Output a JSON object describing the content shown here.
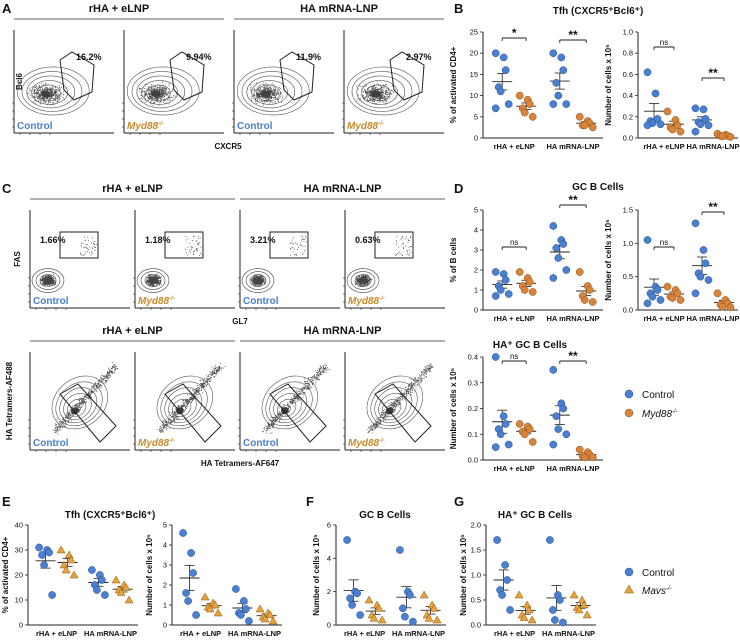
{
  "colors": {
    "control": "#4a7fd1",
    "myd88": "#d9843b",
    "mavs": "#e8a13c"
  },
  "panel_letters": {
    "a": "A",
    "b": "B",
    "c": "C",
    "d": "D",
    "e": "E",
    "f": "F",
    "g": "G"
  },
  "panel_a": {
    "headers": [
      "rHA + eLNP",
      "HA mRNA-LNP"
    ],
    "ylabel": "Bcl6",
    "xlabel": "CXCR5",
    "percents": [
      "16.2%",
      "9.94%",
      "11.9%",
      "2.97%"
    ],
    "labels": [
      "Control",
      "Myd88",
      "Control",
      "Myd88"
    ]
  },
  "panel_c": {
    "headers": [
      "rHA + eLNP",
      "HA mRNA-LNP"
    ],
    "ylabel": "FAS",
    "xlabel": "GL7",
    "percents": [
      "1.66%",
      "1.18%",
      "3.21%",
      "0.63%"
    ],
    "labels": [
      "Control",
      "Myd88",
      "Control",
      "Myd88"
    ]
  },
  "panel_c2": {
    "headers": [
      "rHA + eLNP",
      "HA mRNA-LNP"
    ],
    "ylabel": "HA Tetramers-AF488",
    "xlabel": "HA Tetramers-AF647",
    "labels": [
      "Control",
      "Myd88",
      "Control",
      "Myd88"
    ]
  },
  "ko_sup": "-/-",
  "legend1": {
    "control": "Control",
    "ko": "Myd88"
  },
  "legend2": {
    "control": "Control",
    "ko": "Mavs"
  },
  "chart_data": [
    {
      "id": "B1",
      "type": "scatter",
      "title": "Tfh (CXCR5⁺Bcl6⁺)",
      "ylabel": "% of activated CD4+",
      "ylim": [
        0,
        25
      ],
      "yticks": [
        "0",
        "5",
        "10",
        "15",
        "20",
        "25"
      ],
      "categories": [
        "rHA + eLNP",
        "HA mRNA-LNP"
      ],
      "series": [
        {
          "name": "Control",
          "values": [
            [
              20,
              19,
              16,
              12,
              11,
              8,
              7
            ],
            [
              20,
              19,
              16,
              13,
              10,
              8,
              8
            ]
          ]
        },
        {
          "name": "Myd88",
          "values": [
            [
              10,
              9,
              8,
              7,
              6,
              5
            ],
            [
              5,
              4,
              3.5,
              3,
              3,
              2.5
            ]
          ]
        }
      ],
      "annotations": [
        "*",
        "**"
      ]
    },
    {
      "id": "B2",
      "type": "scatter",
      "title": "",
      "ylabel": "Number of cells x 10⁵",
      "ylim": [
        0,
        1.0
      ],
      "yticks": [
        "0.0",
        "0.2",
        "0.4",
        "0.6",
        "0.8",
        "1.0"
      ],
      "categories": [
        "rHA + eLNP",
        "HA mRNA-LNP"
      ],
      "series": [
        {
          "name": "Control",
          "values": [
            [
              0.62,
              0.42,
              0.18,
              0.16,
              0.14,
              0.13,
              0.12
            ],
            [
              0.28,
              0.27,
              0.18,
              0.15,
              0.13,
              0.12,
              0.06
            ]
          ]
        },
        {
          "name": "Myd88",
          "values": [
            [
              0.25,
              0.17,
              0.12,
              0.1,
              0.08,
              0.06
            ],
            [
              0.04,
              0.03,
              0.02,
              0.02,
              0.015,
              0.01
            ]
          ]
        }
      ],
      "annotations": [
        "ns",
        "**"
      ]
    },
    {
      "id": "D1",
      "type": "scatter",
      "title": "GC B Cells",
      "ylabel": "% of B cells",
      "ylim": [
        0,
        5
      ],
      "yticks": [
        "0",
        "1",
        "2",
        "3",
        "4",
        "5"
      ],
      "categories": [
        "rHA + eLNP",
        "HA mRNA-LNP"
      ],
      "series": [
        {
          "name": "Control",
          "values": [
            [
              1.9,
              1.8,
              1.5,
              1.2,
              1.0,
              0.8,
              0.7
            ],
            [
              4.2,
              3.5,
              3.3,
              3.1,
              2.6,
              2.0,
              1.6
            ]
          ]
        },
        {
          "name": "Myd88",
          "values": [
            [
              1.9,
              1.6,
              1.4,
              1.2,
              1.0,
              0.9
            ],
            [
              1.9,
              1.2,
              1.0,
              0.7,
              0.5,
              0.4
            ]
          ]
        }
      ],
      "annotations": [
        "ns",
        "**"
      ]
    },
    {
      "id": "D2",
      "type": "scatter",
      "title": "",
      "ylabel": "Number of cells x 10⁵",
      "ylim": [
        0,
        1.5
      ],
      "yticks": [
        "0.0",
        "0.5",
        "1.0",
        "1.5"
      ],
      "categories": [
        "rHA + eLNP",
        "HA mRNA-LNP"
      ],
      "series": [
        {
          "name": "Control",
          "values": [
            [
              1.05,
              0.35,
              0.3,
              0.25,
              0.2,
              0.15,
              0.1
            ],
            [
              1.3,
              0.9,
              0.7,
              0.55,
              0.5,
              0.45,
              0.25
            ]
          ]
        },
        {
          "name": "Myd88",
          "values": [
            [
              0.35,
              0.3,
              0.25,
              0.2,
              0.18,
              0.15
            ],
            [
              0.25,
              0.15,
              0.1,
              0.08,
              0.05,
              0.04
            ]
          ]
        }
      ],
      "annotations": [
        "ns",
        "**"
      ]
    },
    {
      "id": "D3",
      "type": "scatter",
      "title": "HA⁺ GC B Cells",
      "ylabel": "Number of cells x 10⁵",
      "ylim": [
        0,
        0.4
      ],
      "yticks": [
        "0.0",
        "0.1",
        "0.2",
        "0.3",
        "0.4"
      ],
      "categories": [
        "rHA + eLNP",
        "HA mRNA-LNP"
      ],
      "series": [
        {
          "name": "Control",
          "values": [
            [
              0.4,
              0.17,
              0.14,
              0.12,
              0.1,
              0.06,
              0.05
            ],
            [
              0.35,
              0.22,
              0.2,
              0.17,
              0.12,
              0.1,
              0.06
            ]
          ]
        },
        {
          "name": "Myd88",
          "values": [
            [
              0.14,
              0.13,
              0.12,
              0.11,
              0.1,
              0.07
            ],
            [
              0.04,
              0.03,
              0.02,
              0.015,
              0.01,
              0.01
            ]
          ]
        }
      ],
      "annotations": [
        "ns",
        "**"
      ]
    },
    {
      "id": "E1",
      "type": "scatter",
      "title": "Tfh (CXCR5⁺Bcl6⁺)",
      "ylabel": "% of activated CD4+",
      "ylim": [
        0,
        40
      ],
      "yticks": [
        "0",
        "10",
        "20",
        "30",
        "40"
      ],
      "categories": [
        "rHA + eLNP",
        "HA mRNA-LNP"
      ],
      "series": [
        {
          "name": "Control",
          "values": [
            [
              31,
              30,
              29,
              28,
              24,
              12
            ],
            [
              22,
              20,
              18,
              16,
              14,
              12
            ]
          ]
        },
        {
          "name": "Mavs",
          "values": [
            [
              30,
              28,
              26,
              24,
              22,
              20
            ],
            [
              18,
              16,
              15,
              14,
              13,
              10
            ]
          ]
        }
      ],
      "annotations": []
    },
    {
      "id": "E2",
      "type": "scatter",
      "title": "",
      "ylabel": "Number of cells x 10⁵",
      "ylim": [
        0,
        5
      ],
      "yticks": [
        "0",
        "1",
        "2",
        "3",
        "4",
        "5"
      ],
      "categories": [
        "rHA + eLNP",
        "HA mRNA-LNP"
      ],
      "series": [
        {
          "name": "Control",
          "values": [
            [
              4.6,
              3.6,
              2.6,
              1.6,
              1.2,
              0.5
            ],
            [
              1.8,
              1.2,
              0.8,
              0.6,
              0.5,
              0.2
            ]
          ]
        },
        {
          "name": "Mavs",
          "values": [
            [
              1.4,
              1.1,
              1.0,
              0.9,
              0.8,
              0.6
            ],
            [
              0.8,
              0.6,
              0.5,
              0.4,
              0.3,
              0.2
            ]
          ]
        }
      ],
      "annotations": []
    },
    {
      "id": "F",
      "type": "scatter",
      "title": "GC B Cells",
      "ylabel": "Number of cells x 10⁵",
      "ylim": [
        0,
        6
      ],
      "yticks": [
        "0",
        "2",
        "4",
        "6"
      ],
      "categories": [
        "rHA + eLNP",
        "HA mRNA-LNP"
      ],
      "series": [
        {
          "name": "Control",
          "values": [
            [
              5.1,
              2.0,
              1.9,
              1.6,
              1.2,
              0.6
            ],
            [
              4.5,
              2.0,
              1.8,
              1.0,
              0.5,
              0.2
            ]
          ]
        },
        {
          "name": "Mavs",
          "values": [
            [
              1.5,
              1.2,
              1.0,
              0.6,
              0.4,
              0.3
            ],
            [
              1.8,
              1.2,
              1.0,
              0.6,
              0.4,
              0.3
            ]
          ]
        }
      ],
      "annotations": []
    },
    {
      "id": "G",
      "type": "scatter",
      "title": "HA⁺ GC B Cells",
      "ylabel": "Number of cells x 10⁵",
      "ylim": [
        0,
        2.0
      ],
      "yticks": [
        "0.0",
        "0.5",
        "1.0",
        "1.5",
        "2.0"
      ],
      "categories": [
        "rHA + eLNP",
        "HA mRNA-LNP"
      ],
      "series": [
        {
          "name": "Control",
          "values": [
            [
              1.7,
              1.2,
              0.9,
              0.7,
              0.6,
              0.3
            ],
            [
              1.7,
              0.6,
              0.5,
              0.3,
              0.1,
              0.05
            ]
          ]
        },
        {
          "name": "Mavs",
          "values": [
            [
              0.6,
              0.4,
              0.3,
              0.2,
              0.15,
              0.1
            ],
            [
              0.6,
              0.5,
              0.4,
              0.35,
              0.3,
              0.2
            ]
          ]
        }
      ],
      "annotations": []
    }
  ]
}
